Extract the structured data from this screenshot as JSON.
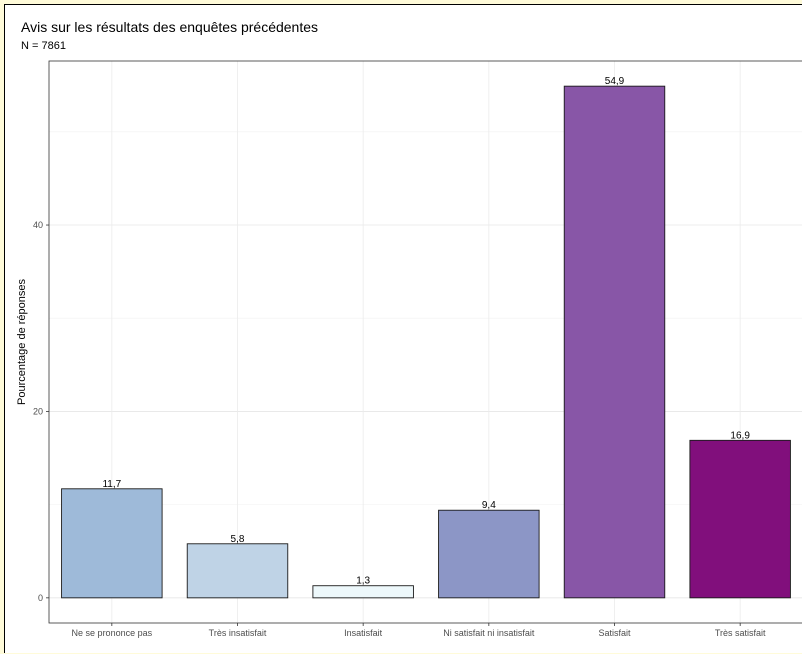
{
  "chart_data": {
    "type": "bar",
    "title": "Avis sur les résultats des enquêtes précédentes",
    "subtitle": "N =  7861",
    "xlabel": "",
    "ylabel": "Pourcentage de réponses",
    "categories": [
      "Ne se prononce pas",
      "Très insatisfait",
      "Insatisfait",
      "Ni satisfait ni insatisfait",
      "Satisfait",
      "Très satisfait"
    ],
    "values": [
      11.7,
      5.8,
      1.3,
      9.4,
      54.9,
      16.9
    ],
    "data_labels": [
      "11,7",
      "5,8",
      "1,3",
      "9,4",
      "54,9",
      "16,9"
    ],
    "colors": [
      "#9ebad9",
      "#bfd3e6",
      "#edf8fb",
      "#8c96c6",
      "#8856a7",
      "#810f7c"
    ],
    "yticks": [
      0,
      20,
      40
    ],
    "ylim": [
      -2.7,
      57.6
    ],
    "grid": true,
    "legend": "none"
  }
}
